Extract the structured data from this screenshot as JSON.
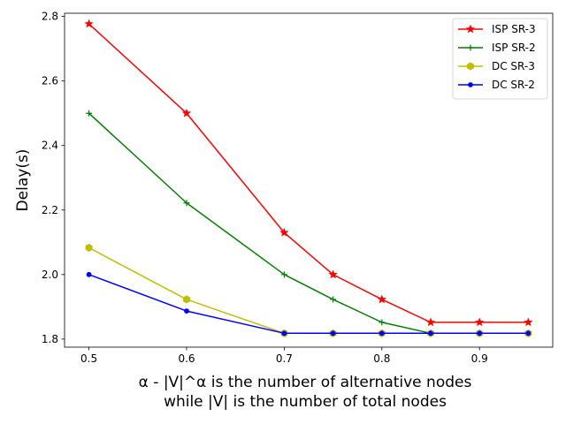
{
  "chart_data": {
    "type": "line",
    "title": "",
    "xlabel_lines": [
      "α - |V|^α is the number of alternative nodes",
      "while |V| is the number of total nodes"
    ],
    "ylabel": "Delay(s)",
    "xlim": [
      0.475,
      0.975
    ],
    "ylim": [
      1.775,
      2.81
    ],
    "x_ticks": [
      0.5,
      0.6,
      0.7,
      0.8,
      0.9
    ],
    "x_tick_labels": [
      "0.5",
      "0.6",
      "0.7",
      "0.8",
      "0.9"
    ],
    "y_ticks": [
      1.8,
      2.0,
      2.2,
      2.4,
      2.6,
      2.8
    ],
    "y_tick_labels": [
      "1.8",
      "2.0",
      "2.2",
      "2.4",
      "2.6",
      "2.8"
    ],
    "grid": false,
    "legend_position": "top-right",
    "x": [
      0.5,
      0.6,
      0.7,
      0.75,
      0.8,
      0.85,
      0.9,
      0.95
    ],
    "series": [
      {
        "name": "ISP SR-3",
        "color": "#ff0000",
        "marker": "star",
        "values": [
          2.777,
          2.5,
          2.13,
          2.0,
          1.923,
          1.852,
          1.852,
          1.852
        ]
      },
      {
        "name": "ISP SR-2",
        "color": "#008000",
        "marker": "plus",
        "values": [
          2.5,
          2.222,
          2.0,
          1.923,
          1.852,
          1.818,
          1.818,
          1.818
        ]
      },
      {
        "name": "DC SR-3",
        "color": "#bfbf00",
        "marker": "hexagon",
        "values": [
          2.083,
          1.923,
          1.818,
          1.818,
          1.818,
          1.818,
          1.818,
          1.818
        ]
      },
      {
        "name": "DC SR-2",
        "color": "#0000ff",
        "marker": "dot",
        "values": [
          2.0,
          1.887,
          1.818,
          1.818,
          1.818,
          1.818,
          1.818,
          1.818
        ]
      }
    ]
  }
}
